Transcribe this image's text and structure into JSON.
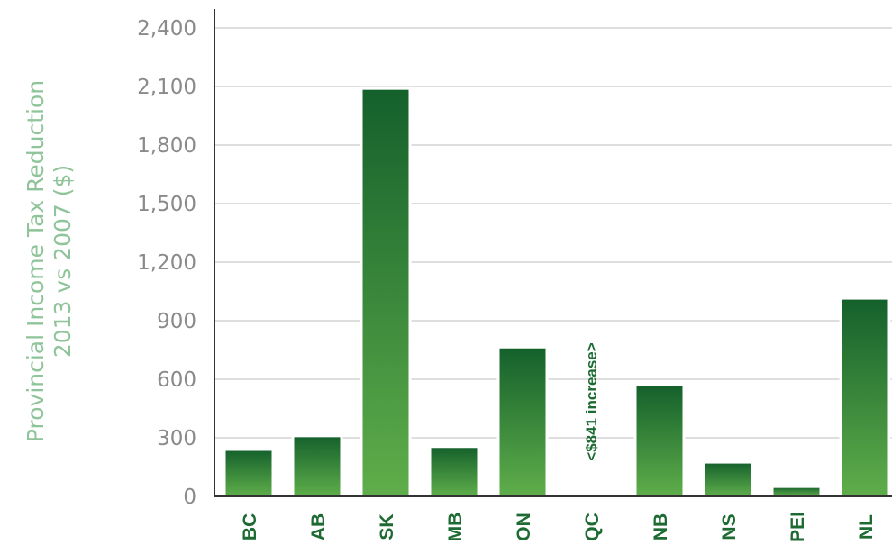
{
  "chart_data": {
    "type": "bar",
    "title": "",
    "ylabel": "Provincial Income Tax Reduction",
    "ylabel_line2": "2013 vs 2007 ($)",
    "xlabel": "",
    "categories": [
      "BC",
      "AB",
      "SK",
      "MB",
      "ON",
      "QC",
      "NB",
      "NS",
      "PEI",
      "NL"
    ],
    "values": [
      240,
      310,
      2090,
      255,
      765,
      null,
      570,
      175,
      50,
      1015
    ],
    "ylim": [
      0,
      2400
    ],
    "yticks": [
      "0",
      "300",
      "600",
      "900",
      "1,200",
      "1,500",
      "1,800",
      "2,100",
      "2,400"
    ],
    "annotations": [
      {
        "category": "QC",
        "text": "<$841 increase>"
      }
    ],
    "grid": true,
    "legend": "none",
    "colors": {
      "bar_top": "#14602c",
      "bar_bottom": "#5fae4a",
      "bar_border": "#ffffff",
      "label": "#1d6b33",
      "ylabel": "#8fc49a",
      "tick": "#8a8a8a",
      "grid": "#d4d4d4",
      "axis": "#333333"
    }
  }
}
